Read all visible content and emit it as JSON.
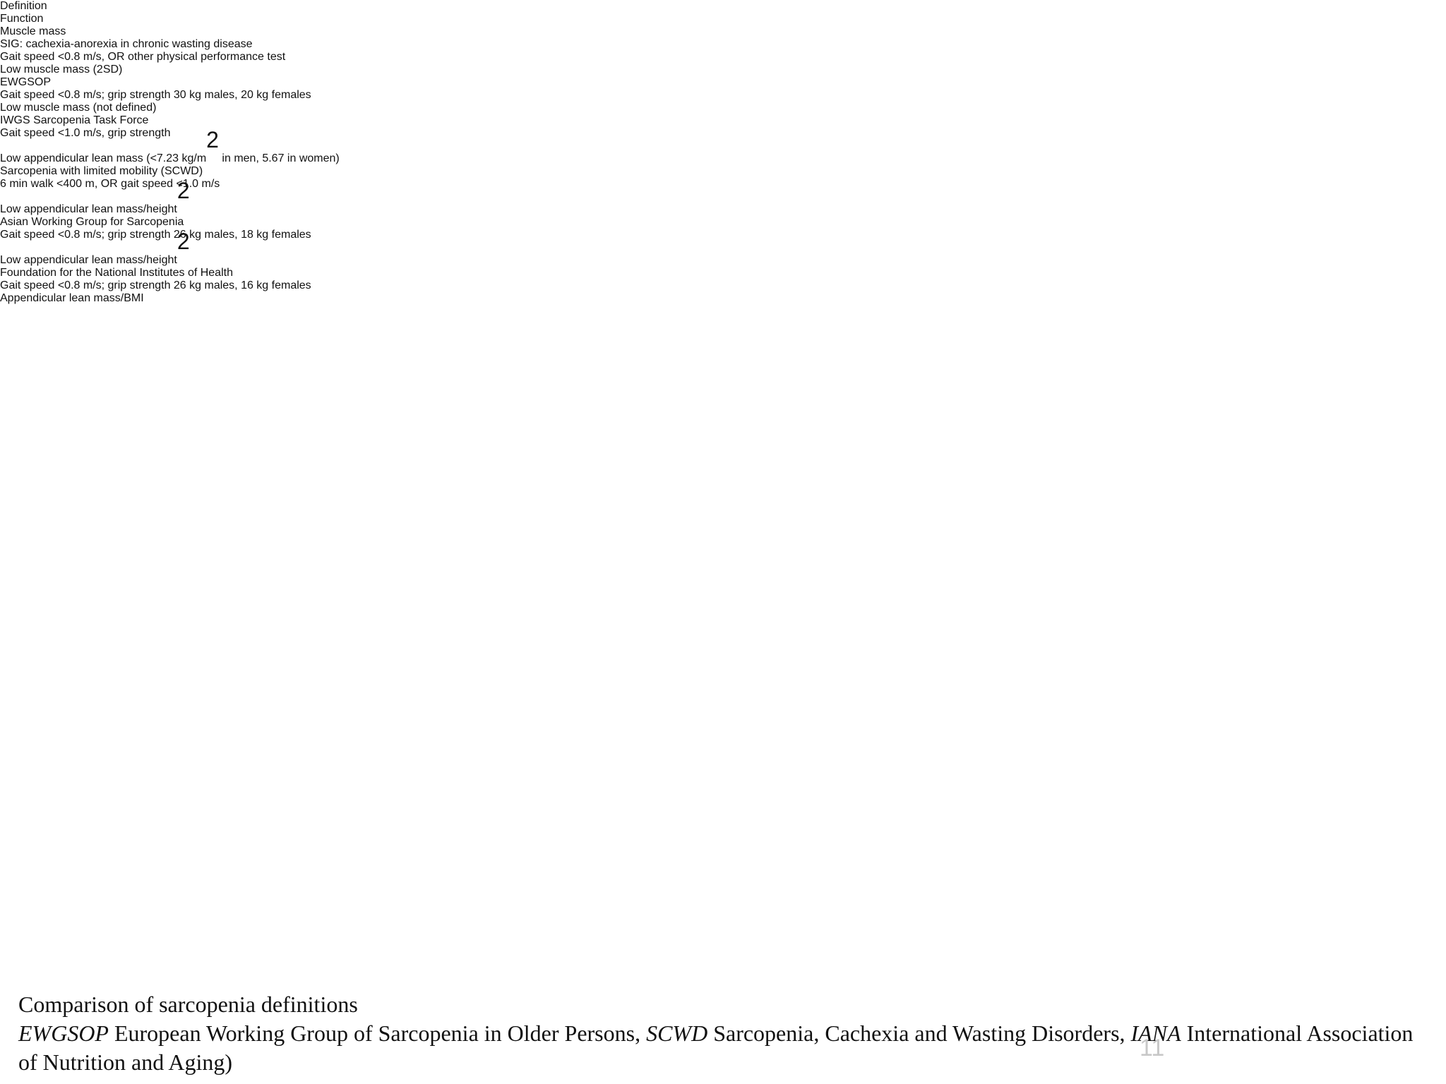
{
  "table": {
    "header": [
      "Definition",
      "Function",
      "Muscle mass"
    ],
    "rows": [
      [
        [
          "SIG: cachexia-anorexia in chronic wasting disease"
        ],
        [
          "Gait speed <0.8 m/s, OR other physical performance test"
        ],
        [
          "Low muscle mass (2SD)"
        ]
      ],
      [
        [
          "EWGSOP"
        ],
        [
          "Gait speed <0.8 m/s; grip strength 30 kg males, 20 kg females"
        ],
        [
          "Low muscle mass (not defined)"
        ]
      ],
      [
        [
          "IWGS Sarcopenia Task Force"
        ],
        [
          "Gait speed <1.0 m/s, grip strength"
        ],
        [
          "Low appendicular lean mass (<7.23 kg/m",
          {
            "sup": "2"
          },
          " in men, 5.67 in women)"
        ]
      ],
      [
        [
          "Sarcopenia with limited mobility (SCWD)"
        ],
        [
          "6 min walk <400 m, OR gait speed <1.0 m/s"
        ],
        [
          "Low appendicular lean mass/height",
          {
            "sup": "2"
          }
        ]
      ],
      [
        [
          "Asian Working Group for Sarcopenia"
        ],
        [
          "Gait speed <0.8 m/s; grip strength 26 kg males, 18 kg females"
        ],
        [
          "Low appendicular lean mass/height",
          {
            "sup": "2"
          }
        ]
      ],
      [
        [
          "Foundation for the National Institutes of Health"
        ],
        [
          "Gait speed <0.8 m/s; grip strength 26 kg males, 16 kg females"
        ],
        [
          "Appendicular lean mass/BMI"
        ]
      ]
    ]
  },
  "caption": {
    "title": "Comparison of sarcopenia definitions",
    "note": [
      {
        "i": "EWGSOP"
      },
      " European Working Group of Sarcopenia in Older Persons, ",
      {
        "i": "SCWD"
      },
      " Sarcopenia, Cachexia and Wasting Disorders, ",
      {
        "i": "IANA"
      },
      " International Association of Nutrition and Aging)"
    ]
  },
  "page_number": "11"
}
